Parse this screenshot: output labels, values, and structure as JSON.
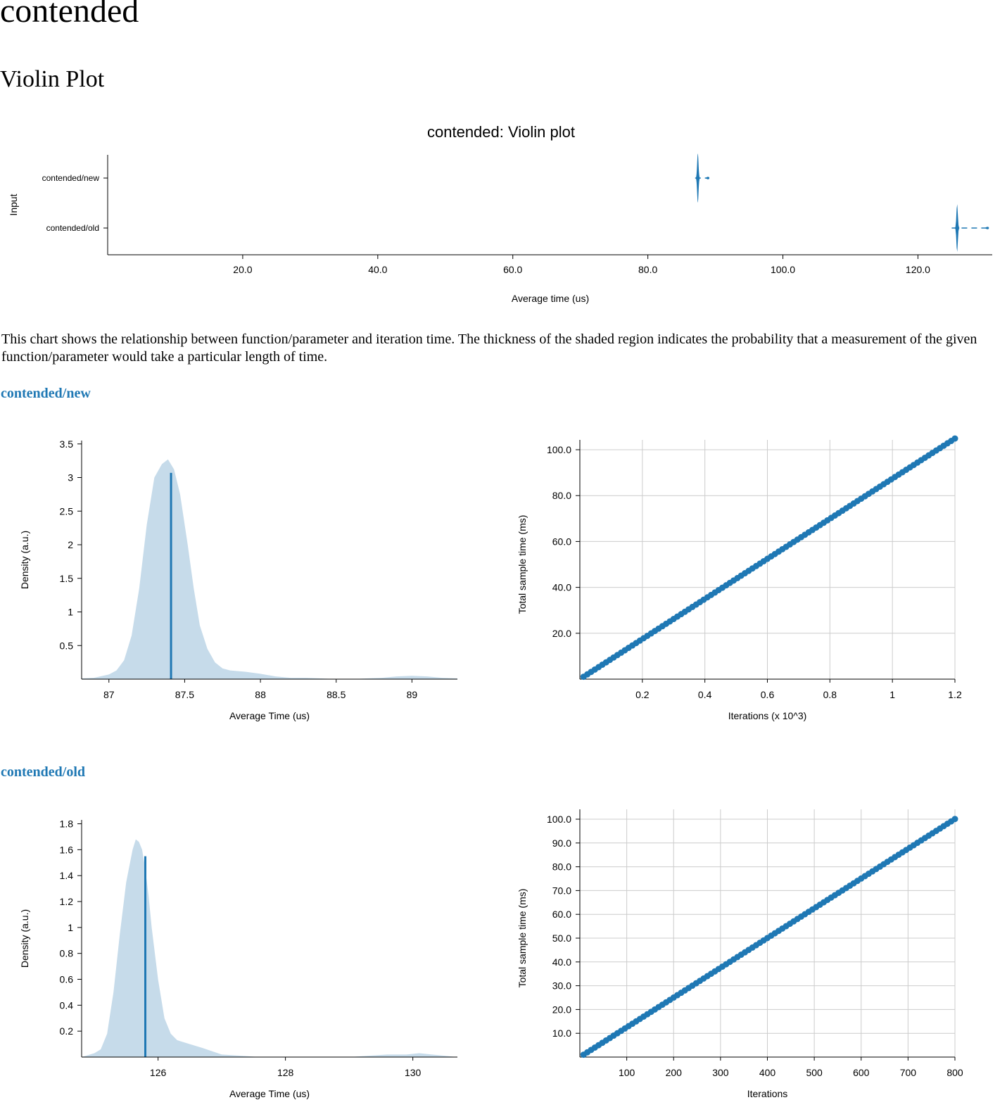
{
  "page": {
    "title": "contended",
    "section_title": "Violin Plot",
    "description": "This chart shows the relationship between function/parameter and iteration time. The thickness of the shaded region indicates the probability that a measurement of the given function/parameter would take a particular length of time.",
    "bench_new_label": "contended/new",
    "bench_old_label": "contended/old"
  },
  "colors": {
    "accent": "#1f78b4",
    "pdf_fill": "#c6dbea",
    "grid": "#cccccc"
  },
  "chart_data": [
    {
      "id": "violin",
      "type": "violin",
      "title": "contended: Violin plot",
      "xlabel": "Average time (us)",
      "ylabel": "Input",
      "xlim": [
        0,
        131
      ],
      "xticks": [
        "20.0",
        "40.0",
        "60.0",
        "80.0",
        "100.0",
        "120.0"
      ],
      "xtick_values": [
        20,
        40,
        60,
        80,
        100,
        120
      ],
      "categories": [
        "contended/new",
        "contended/old"
      ],
      "violins": [
        {
          "name": "contended/new",
          "center": 87.4,
          "min": 87.0,
          "max": 89.1,
          "max_halfwidth": 0.45
        },
        {
          "name": "contended/old",
          "center": 125.8,
          "min": 125.0,
          "max": 130.5,
          "max_halfwidth": 0.45
        }
      ]
    },
    {
      "id": "pdf_new",
      "type": "area",
      "xlabel": "Average Time (us)",
      "ylabel": "Density (a.u.)",
      "xlim": [
        86.82,
        89.3
      ],
      "ylim": [
        0,
        3.55
      ],
      "xticks": [
        "87",
        "87.5",
        "88",
        "88.5",
        "89"
      ],
      "xtick_values": [
        87,
        87.5,
        88,
        88.5,
        89
      ],
      "yticks": [
        "0.5",
        "1",
        "1.5",
        "2",
        "2.5",
        "3",
        "3.5"
      ],
      "ytick_values": [
        0.5,
        1,
        1.5,
        2,
        2.5,
        3,
        3.5
      ],
      "mean": 87.41,
      "mean_density": 3.07,
      "x": [
        86.82,
        86.9,
        87.0,
        87.05,
        87.1,
        87.15,
        87.2,
        87.25,
        87.3,
        87.35,
        87.39,
        87.43,
        87.47,
        87.52,
        87.56,
        87.6,
        87.65,
        87.7,
        87.75,
        87.8,
        87.9,
        88.0,
        88.1,
        88.2,
        88.3,
        88.4,
        88.5,
        88.6,
        88.7,
        88.8,
        88.9,
        89.0,
        89.1,
        89.2,
        89.3
      ],
      "y": [
        0.01,
        0.02,
        0.07,
        0.13,
        0.28,
        0.65,
        1.35,
        2.3,
        3.0,
        3.2,
        3.27,
        3.12,
        2.75,
        2.0,
        1.35,
        0.8,
        0.45,
        0.25,
        0.16,
        0.13,
        0.11,
        0.08,
        0.04,
        0.02,
        0.02,
        0.01,
        0.0,
        0.0,
        0.01,
        0.02,
        0.04,
        0.05,
        0.04,
        0.02,
        0.01
      ]
    },
    {
      "id": "reg_new",
      "type": "scatter",
      "xlabel": "Iterations (x 10^3)",
      "ylabel": "Total sample time (ms)",
      "xlim": [
        0,
        1.2
      ],
      "ylim": [
        0,
        100
      ],
      "xticks": [
        "0.2",
        "0.4",
        "0.6",
        "0.8",
        "1",
        "1.2"
      ],
      "xtick_values": [
        0.2,
        0.4,
        0.6,
        0.8,
        1.0,
        1.2
      ],
      "yticks": [
        "20.0",
        "40.0",
        "60.0",
        "80.0",
        "100.0"
      ],
      "ytick_values": [
        20,
        40,
        60,
        80,
        100
      ],
      "x_start": 0.012,
      "x_step": 0.012,
      "n_points": 100,
      "slope_ms_per_k": 87.4
    },
    {
      "id": "pdf_old",
      "type": "area",
      "xlabel": "Average Time (us)",
      "ylabel": "Density (a.u.)",
      "xlim": [
        124.8,
        130.7
      ],
      "ylim": [
        0,
        1.83
      ],
      "xticks": [
        "126",
        "128",
        "130"
      ],
      "xtick_values": [
        126,
        128,
        130
      ],
      "yticks": [
        "0.2",
        "0.4",
        "0.6",
        "0.8",
        "1",
        "1.2",
        "1.4",
        "1.6",
        "1.8"
      ],
      "ytick_values": [
        0.2,
        0.4,
        0.6,
        0.8,
        1.0,
        1.2,
        1.4,
        1.6,
        1.8
      ],
      "mean": 125.8,
      "mean_density": 1.55,
      "x": [
        124.8,
        125.0,
        125.1,
        125.2,
        125.3,
        125.4,
        125.5,
        125.6,
        125.65,
        125.7,
        125.75,
        125.8,
        125.85,
        125.9,
        126.0,
        126.1,
        126.2,
        126.3,
        126.5,
        126.7,
        127.0,
        127.3,
        127.6,
        128.0,
        128.5,
        129.0,
        129.3,
        129.6,
        129.9,
        130.1,
        130.3,
        130.5,
        130.7
      ],
      "y": [
        0.0,
        0.03,
        0.06,
        0.18,
        0.5,
        0.95,
        1.35,
        1.6,
        1.68,
        1.66,
        1.6,
        1.45,
        1.25,
        1.0,
        0.6,
        0.3,
        0.18,
        0.13,
        0.1,
        0.07,
        0.02,
        0.01,
        0.0,
        0.0,
        0.0,
        0.0,
        0.01,
        0.02,
        0.02,
        0.03,
        0.02,
        0.01,
        0.0
      ]
    },
    {
      "id": "reg_old",
      "type": "scatter",
      "xlabel": "Iterations",
      "ylabel": "Total sample time (ms)",
      "xlim": [
        0,
        800
      ],
      "ylim": [
        0,
        100
      ],
      "xticks": [
        "100",
        "200",
        "300",
        "400",
        "500",
        "600",
        "700",
        "800"
      ],
      "xtick_values": [
        100,
        200,
        300,
        400,
        500,
        600,
        700,
        800
      ],
      "yticks": [
        "10.0",
        "20.0",
        "30.0",
        "40.0",
        "50.0",
        "60.0",
        "70.0",
        "80.0",
        "90.0",
        "100.0"
      ],
      "ytick_values": [
        10,
        20,
        30,
        40,
        50,
        60,
        70,
        80,
        90,
        100
      ],
      "x_start": 8,
      "x_step": 8,
      "n_points": 100,
      "slope_ms_per_iter": 0.1251
    }
  ]
}
